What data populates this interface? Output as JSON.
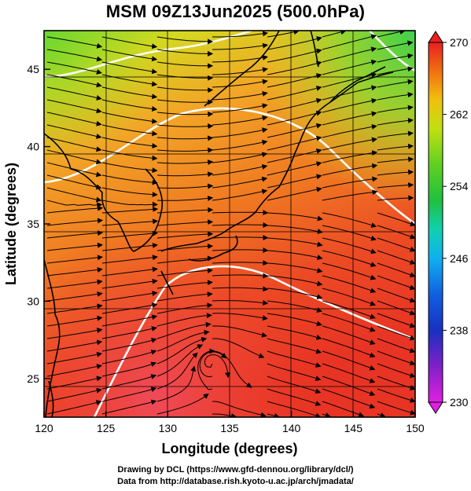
{
  "title": "MSM 09Z13Jun2025 (500.0hPa)",
  "x_axis": {
    "label": "Longitude (degrees)",
    "range": [
      120,
      150
    ],
    "ticks": [
      120,
      125,
      130,
      135,
      140,
      145,
      150
    ]
  },
  "y_axis": {
    "label": "Latitude  (degrees)",
    "range": [
      22.5,
      47.5
    ],
    "ticks": [
      25,
      30,
      35,
      40,
      45
    ]
  },
  "colorbar": {
    "range": [
      230,
      270
    ],
    "ticks": [
      230,
      238,
      246,
      254,
      262,
      270
    ],
    "colors": [
      "#e020e0",
      "#8020c8",
      "#1830c0",
      "#1060e0",
      "#10b0f0",
      "#10d0b0",
      "#20c040",
      "#60d020",
      "#c0e010",
      "#f0c010",
      "#f07010",
      "#e82020"
    ]
  },
  "field": {
    "description_colors": {
      "north": "#9fdc2a",
      "mid": "#f2a020",
      "south": "#ea3a2a"
    }
  },
  "credits": {
    "line1": "Drawing by DCL (https://www.gfd-dennou.org/library/dcl/)",
    "line2": "Data from http://database.rish.kyoto-u.ac.jp/arch/jmadata/"
  }
}
